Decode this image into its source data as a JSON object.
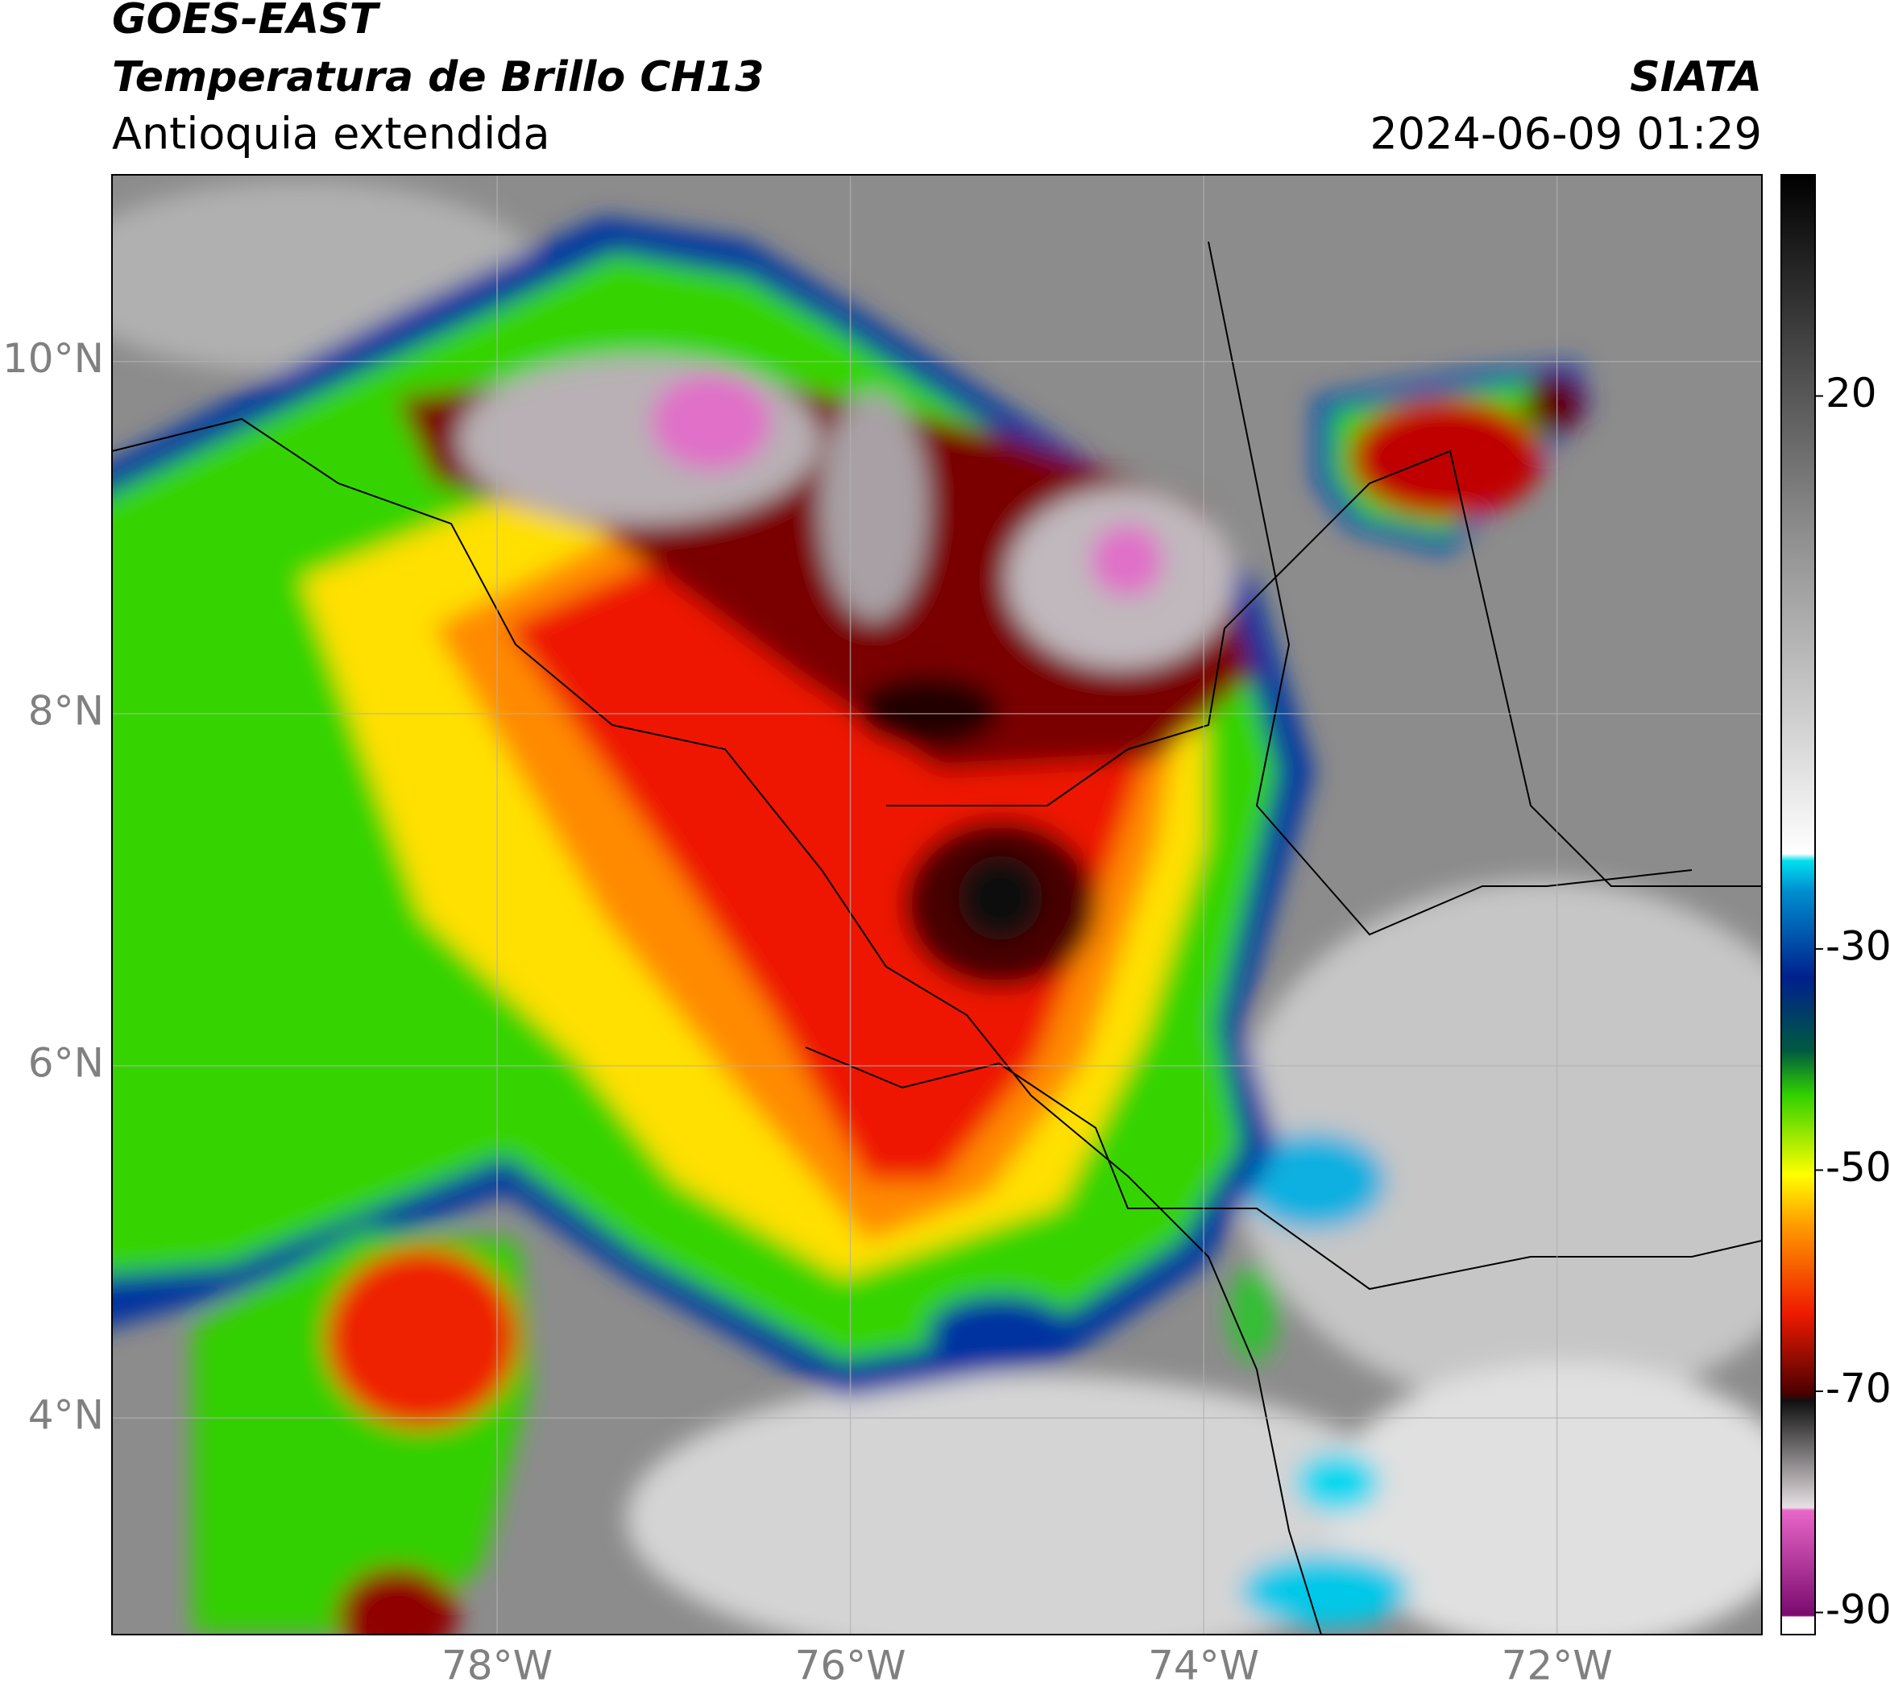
{
  "header": {
    "satellite": "GOES-EAST",
    "product": "Temperatura de Brillo CH13",
    "region": "Antioquia extendida",
    "agency": "SIATA",
    "datetime": "2024-06-09 01:29"
  },
  "map": {
    "xlim": [
      -80.18,
      -70.84
    ],
    "ylim": [
      2.77,
      11.06
    ],
    "xticks": [
      {
        "value": -78,
        "label": "78°W"
      },
      {
        "value": -76,
        "label": "76°W"
      },
      {
        "value": -74,
        "label": "74°W"
      },
      {
        "value": -72,
        "label": "72°W"
      }
    ],
    "yticks": [
      {
        "value": 4,
        "label": "4°N"
      },
      {
        "value": 6,
        "label": "6°N"
      },
      {
        "value": 8,
        "label": "8°N"
      },
      {
        "value": 10,
        "label": "10°N"
      }
    ],
    "grid": true
  },
  "colorbar": {
    "lim": [
      -92,
      40
    ],
    "ticks": [
      -90,
      -70,
      -50,
      -30,
      20
    ]
  }
}
